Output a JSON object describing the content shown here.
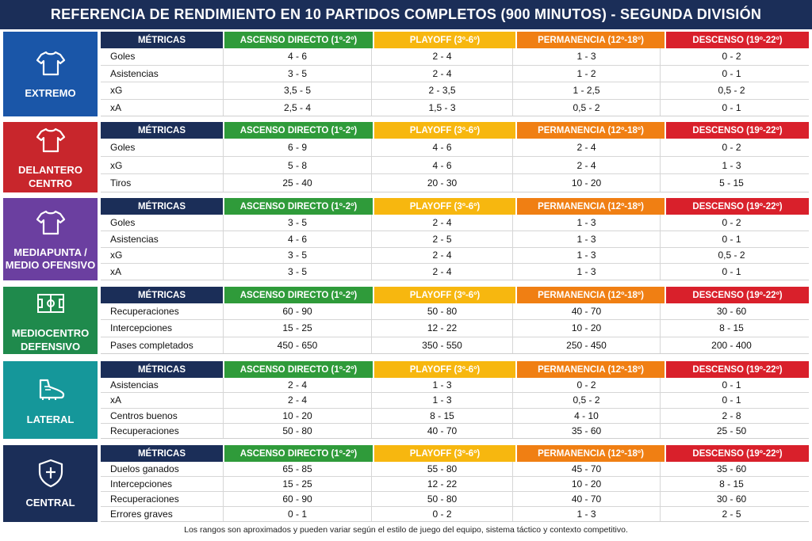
{
  "title": "REFERENCIA DE RENDIMIENTO EN 10 PARTIDOS COMPLETOS (900 MINUTOS) - SEGUNDA DIVISIÓN",
  "headers": {
    "metrics": "MÉTRICAS",
    "ascenso": "ASCENSO DIRECTO (1º-2º)",
    "playoff": "PLAYOFF (3º-6º)",
    "permanencia": "PERMANENCIA (12º-18º)",
    "descenso": "DESCENSO (19º-22º)"
  },
  "colors": {
    "metrics_header": "#1b2e58",
    "ascenso": "#2f9b3a",
    "playoff": "#f7b70f",
    "permanencia": "#f07f13",
    "descenso": "#d9202b"
  },
  "sections": [
    {
      "position_lines": [
        "EXTREMO"
      ],
      "icon": "jersey-icon",
      "color": "#1a56a8",
      "rows": [
        {
          "metric": "Goles",
          "ascenso": "4 - 6",
          "playoff": "2 - 4",
          "permanencia": "1 - 3",
          "descenso": "0 - 2"
        },
        {
          "metric": "Asistencias",
          "ascenso": "3 - 5",
          "playoff": "2 - 4",
          "permanencia": "1 - 2",
          "descenso": "0 - 1"
        },
        {
          "metric": "xG",
          "ascenso": "3,5 - 5",
          "playoff": "2 - 3,5",
          "permanencia": "1 - 2,5",
          "descenso": "0,5 - 2"
        },
        {
          "metric": "xA",
          "ascenso": "2,5 - 4",
          "playoff": "1,5 - 3",
          "permanencia": "0,5 - 2",
          "descenso": "0 - 1"
        }
      ]
    },
    {
      "position_lines": [
        "DELANTERO",
        "CENTRO"
      ],
      "icon": "jersey-icon",
      "color": "#c8262c",
      "rows": [
        {
          "metric": "Goles",
          "ascenso": "6 - 9",
          "playoff": "4 - 6",
          "permanencia": "2 - 4",
          "descenso": "0 - 2"
        },
        {
          "metric": "xG",
          "ascenso": "5 - 8",
          "playoff": "4 - 6",
          "permanencia": "2 - 4",
          "descenso": "1 - 3"
        },
        {
          "metric": "Tiros",
          "ascenso": "25 - 40",
          "playoff": "20 - 30",
          "permanencia": "10 - 20",
          "descenso": "5 - 15"
        }
      ]
    },
    {
      "position_lines": [
        "MEDIAPUNTA /",
        "MEDIO OFENSIVO"
      ],
      "icon": "jersey-icon",
      "color": "#6b3fa0",
      "rows": [
        {
          "metric": "Goles",
          "ascenso": "3 - 5",
          "playoff": "2 - 4",
          "permanencia": "1 - 3",
          "descenso": "0 - 2"
        },
        {
          "metric": "Asistencias",
          "ascenso": "4 - 6",
          "playoff": "2 - 5",
          "permanencia": "1 - 3",
          "descenso": "0 - 1"
        },
        {
          "metric": "xG",
          "ascenso": "3 - 5",
          "playoff": "2 - 4",
          "permanencia": "1 - 3",
          "descenso": "0,5 - 2"
        },
        {
          "metric": "xA",
          "ascenso": "3 - 5",
          "playoff": "2 - 4",
          "permanencia": "1 - 3",
          "descenso": "0 - 1"
        }
      ]
    },
    {
      "position_lines": [
        "MEDIOCENTRO",
        "DEFENSIVO"
      ],
      "icon": "football-pitch-icon",
      "color": "#1f8a4c",
      "rows": [
        {
          "metric": "Recuperaciones",
          "ascenso": "60 - 90",
          "playoff": "50 - 80",
          "permanencia": "40 - 70",
          "descenso": "30 - 60"
        },
        {
          "metric": "Intercepciones",
          "ascenso": "15 - 25",
          "playoff": "12 - 22",
          "permanencia": "10 - 20",
          "descenso": "8 - 15"
        },
        {
          "metric": "Pases completados",
          "ascenso": "450 - 650",
          "playoff": "350 - 550",
          "permanencia": "250 - 450",
          "descenso": "200 - 400"
        }
      ]
    },
    {
      "position_lines": [
        "LATERAL"
      ],
      "icon": "football-boot-icon",
      "color": "#15979a",
      "rows": [
        {
          "metric": "Asistencias",
          "ascenso": "2 - 4",
          "playoff": "1 - 3",
          "permanencia": "0 - 2",
          "descenso": "0 - 1"
        },
        {
          "metric": "xA",
          "ascenso": "2 - 4",
          "playoff": "1 - 3",
          "permanencia": "0,5 - 2",
          "descenso": "0 - 1"
        },
        {
          "metric": "Centros buenos",
          "ascenso": "10 - 20",
          "playoff": "8 - 15",
          "permanencia": "4 - 10",
          "descenso": "2 - 8"
        },
        {
          "metric": "Recuperaciones",
          "ascenso": "50 - 80",
          "playoff": "40 - 70",
          "permanencia": "35 - 60",
          "descenso": "25 - 50"
        }
      ]
    },
    {
      "position_lines": [
        "CENTRAL"
      ],
      "icon": "shield-icon",
      "color": "#1b2e58",
      "rows": [
        {
          "metric": "Duelos ganados",
          "ascenso": "65 - 85",
          "playoff": "55 - 80",
          "permanencia": "45 - 70",
          "descenso": "35 - 60"
        },
        {
          "metric": "Intercepciones",
          "ascenso": "15 - 25",
          "playoff": "12 - 22",
          "permanencia": "10 - 20",
          "descenso": "8 - 15"
        },
        {
          "metric": "Recuperaciones",
          "ascenso": "60 - 90",
          "playoff": "50 - 80",
          "permanencia": "40 - 70",
          "descenso": "30 - 60"
        },
        {
          "metric": "Errores graves",
          "ascenso": "0 - 1",
          "playoff": "0 - 2",
          "permanencia": "1 - 3",
          "descenso": "2 - 5"
        }
      ]
    }
  ],
  "footer": "Los rangos son aproximados y pueden variar según el estilo de juego del equipo, sistema táctico y contexto competitivo."
}
